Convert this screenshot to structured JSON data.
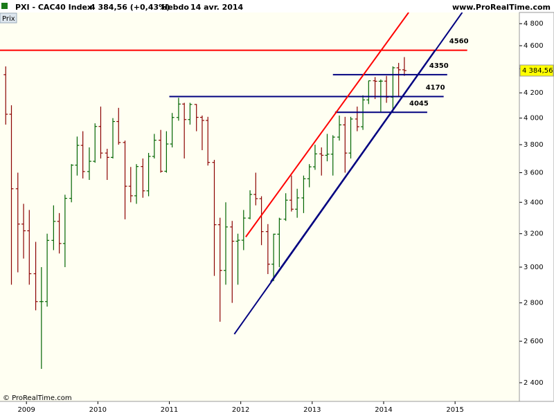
{
  "chart_data": {
    "type": "ohlc",
    "symbol": "PXI - CAC40 Index",
    "quote": "4 384,56 (+0,43%)",
    "period": "Hebdo",
    "date": "14 avr. 2014",
    "site": "www.ProRealTime.com",
    "panel_label": "Prix",
    "copyright": "© ProRealTime.com",
    "last_price": {
      "value": 4384.56,
      "label": "4 384,56"
    },
    "log_scale": true,
    "up_color": "#006400",
    "down_color": "#8b0000",
    "xlim": [
      2008.63,
      2015.9
    ],
    "xticks": [
      2009,
      2010,
      2011,
      2012,
      2013,
      2014,
      2015
    ],
    "ylim": [
      2315,
      4905
    ],
    "yticks": [
      {
        "value": 2400,
        "label": "2 400"
      },
      {
        "value": 2600,
        "label": "2 600"
      },
      {
        "value": 2800,
        "label": "2 800"
      },
      {
        "value": 3000,
        "label": "3 000"
      },
      {
        "value": 3200,
        "label": "3 200"
      },
      {
        "value": 3400,
        "label": "3 400"
      },
      {
        "value": 3600,
        "label": "3 600"
      },
      {
        "value": 3800,
        "label": "3 800"
      },
      {
        "value": 4000,
        "label": "4 000"
      },
      {
        "value": 4200,
        "label": "4 200"
      },
      {
        "value": 4400,
        "label": "4 400"
      },
      {
        "value": 4600,
        "label": "4 600"
      },
      {
        "value": 4800,
        "label": "4 800"
      }
    ],
    "x": [
      2008.71,
      2008.79,
      2008.88,
      2008.96,
      2009.04,
      2009.13,
      2009.21,
      2009.29,
      2009.38,
      2009.46,
      2009.54,
      2009.63,
      2009.71,
      2009.79,
      2009.88,
      2009.96,
      2010.04,
      2010.13,
      2010.21,
      2010.29,
      2010.38,
      2010.46,
      2010.54,
      2010.63,
      2010.71,
      2010.79,
      2010.88,
      2010.96,
      2011.04,
      2011.13,
      2011.21,
      2011.29,
      2011.38,
      2011.46,
      2011.54,
      2011.63,
      2011.71,
      2011.79,
      2011.88,
      2011.96,
      2012.04,
      2012.13,
      2012.21,
      2012.29,
      2012.38,
      2012.46,
      2012.54,
      2012.63,
      2012.71,
      2012.79,
      2012.88,
      2012.96,
      2013.04,
      2013.13,
      2013.21,
      2013.29,
      2013.38,
      2013.46,
      2013.54,
      2013.63,
      2013.71,
      2013.79,
      2013.88,
      2013.96,
      2014.04,
      2014.13,
      2014.21,
      2014.29
    ],
    "open": [
      4350,
      4030,
      3490,
      3260,
      3218,
      2962,
      2807,
      2807,
      3159,
      3277,
      3140,
      3426,
      3653,
      3795,
      3608,
      3680,
      3936,
      3739,
      3708,
      3974,
      3816,
      3507,
      3443,
      3643,
      3476,
      3715,
      3833,
      3610,
      3805,
      4005,
      4110,
      3989,
      4107,
      4006,
      3982,
      3672,
      3256,
      2981,
      3242,
      3154,
      3160,
      3298,
      3452,
      3424,
      3213,
      3017,
      3197,
      3291,
      3414,
      3355,
      3429,
      3558,
      3641,
      3733,
      3723,
      3731,
      3856,
      3948,
      3739,
      3993,
      3934,
      4143,
      4299,
      4295,
      4296,
      4165,
      4408,
      4391
    ],
    "high": [
      4420,
      4100,
      3600,
      3390,
      3350,
      3150,
      3000,
      3200,
      3380,
      3330,
      3450,
      3660,
      3860,
      3900,
      3780,
      3960,
      4090,
      3770,
      4000,
      4080,
      3830,
      3640,
      3660,
      3700,
      3740,
      3880,
      3910,
      3900,
      4040,
      4160,
      4120,
      4120,
      4110,
      4020,
      4010,
      3690,
      3300,
      3400,
      3280,
      3200,
      3350,
      3480,
      3600,
      3440,
      3260,
      3200,
      3300,
      3460,
      3580,
      3490,
      3580,
      3660,
      3800,
      3780,
      3880,
      3870,
      4020,
      4010,
      4010,
      4090,
      4180,
      4300,
      4330,
      4310,
      4340,
      4420,
      4450,
      4500
    ],
    "low": [
      3950,
      2900,
      2970,
      3050,
      2900,
      2760,
      2465,
      2780,
      3100,
      3080,
      3000,
      3400,
      3580,
      3560,
      3550,
      3670,
      3700,
      3550,
      3700,
      3800,
      3290,
      3400,
      3390,
      3430,
      3440,
      3700,
      3600,
      3600,
      3780,
      3980,
      3700,
      3950,
      3900,
      3760,
      3650,
      2950,
      2700,
      2900,
      2800,
      2900,
      3100,
      3290,
      3380,
      3130,
      2960,
      2920,
      3000,
      3280,
      3340,
      3300,
      3330,
      3500,
      3620,
      3580,
      3680,
      3580,
      3830,
      3600,
      3700,
      3900,
      3910,
      4110,
      4150,
      4050,
      4120,
      4040,
      4170,
      4340
    ],
    "close": [
      4030,
      3490,
      3260,
      3218,
      2962,
      2807,
      2807,
      3159,
      3277,
      3140,
      3426,
      3653,
      3795,
      3608,
      3680,
      3936,
      3739,
      3708,
      3974,
      3816,
      3507,
      3443,
      3643,
      3476,
      3715,
      3833,
      3610,
      3805,
      4005,
      4110,
      3989,
      4107,
      4006,
      3982,
      3672,
      3256,
      2981,
      3242,
      3154,
      3160,
      3298,
      3452,
      3424,
      3213,
      3017,
      3197,
      3291,
      3414,
      3355,
      3429,
      3558,
      3641,
      3733,
      3723,
      3731,
      3856,
      3948,
      3739,
      3993,
      3934,
      4143,
      4299,
      4295,
      4296,
      4165,
      4408,
      4391,
      4384.56
    ],
    "levels": [
      {
        "value": 4560,
        "color": "#ff0000",
        "x": [
          2008.63,
          2015.17
        ]
      },
      {
        "value": 4350,
        "color": "#000080",
        "x": [
          2013.29,
          2014.89
        ]
      },
      {
        "value": 4170,
        "color": "#000080",
        "x": [
          2011.0,
          2014.84
        ]
      },
      {
        "value": 4045,
        "color": "#000080",
        "x": [
          2013.32,
          2014.61
        ]
      }
    ],
    "trendlines": [
      {
        "color": "#ff0000",
        "x": [
          2012.07,
          2014.35
        ],
        "y": [
          3180,
          4905
        ]
      },
      {
        "color": "#000080",
        "x": [
          2011.91,
          2015.1
        ],
        "y": [
          2636,
          4905
        ]
      },
      {
        "color": "#000080",
        "x": [
          2012.42,
          2014.72
        ],
        "y": [
          2916,
          4560
        ]
      }
    ]
  }
}
